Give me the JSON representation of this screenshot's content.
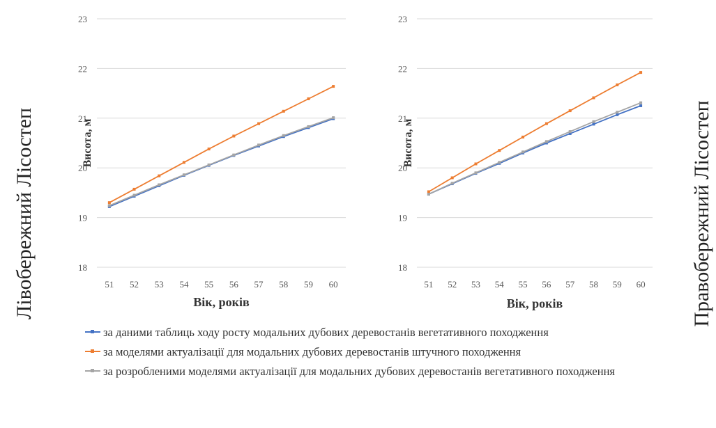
{
  "side_labels": {
    "left": "Лівобережний Лісостеп",
    "right": "Правобережний Лісостеп"
  },
  "legend": [
    {
      "series": 0,
      "text": "за даними таблиць ходу росту модальних дубових деревостанів вегетативного походження"
    },
    {
      "series": 1,
      "text": "за моделями актуалізації для модальних дубових деревостанів штучного походження"
    },
    {
      "series": 2,
      "text": "за розробленими моделями актуалізації для модальних дубових деревостанів вегетативного походження"
    }
  ],
  "colors": {
    "series": [
      "#4472C4",
      "#ED7D31",
      "#A5A5A5"
    ],
    "grid": "#D9D9D9"
  },
  "chart_data": [
    {
      "type": "line",
      "panel": "Лівобережний Лісостеп",
      "title": "",
      "xlabel": "Вік, років",
      "ylabel": "Висота, м",
      "x": [
        51,
        52,
        53,
        54,
        55,
        56,
        57,
        58,
        59,
        60
      ],
      "ylim": [
        18,
        23
      ],
      "yticks": [
        18,
        19,
        20,
        21,
        22,
        23
      ],
      "grid": true,
      "series": [
        {
          "values": [
            19.22,
            19.43,
            19.64,
            19.85,
            20.05,
            20.25,
            20.44,
            20.63,
            20.81,
            20.99
          ]
        },
        {
          "values": [
            19.3,
            19.57,
            19.84,
            20.11,
            20.38,
            20.64,
            20.89,
            21.14,
            21.39,
            21.64
          ]
        },
        {
          "values": [
            19.24,
            19.45,
            19.66,
            19.86,
            20.06,
            20.26,
            20.46,
            20.65,
            20.83,
            21.01
          ]
        }
      ]
    },
    {
      "type": "line",
      "panel": "Правобережний Лісостеп",
      "title": "",
      "xlabel": "Вік, років",
      "ylabel": "Висота, м",
      "x": [
        51,
        52,
        53,
        54,
        55,
        56,
        57,
        58,
        59,
        60
      ],
      "ylim": [
        18,
        23
      ],
      "yticks": [
        18,
        19,
        20,
        21,
        22,
        23
      ],
      "grid": true,
      "series": [
        {
          "values": [
            19.47,
            19.68,
            19.89,
            20.09,
            20.3,
            20.5,
            20.69,
            20.88,
            21.07,
            21.25
          ]
        },
        {
          "values": [
            19.52,
            19.8,
            20.08,
            20.35,
            20.62,
            20.89,
            21.15,
            21.41,
            21.67,
            21.92
          ]
        },
        {
          "values": [
            19.47,
            19.69,
            19.9,
            20.11,
            20.32,
            20.53,
            20.73,
            20.93,
            21.12,
            21.31
          ]
        }
      ]
    }
  ]
}
